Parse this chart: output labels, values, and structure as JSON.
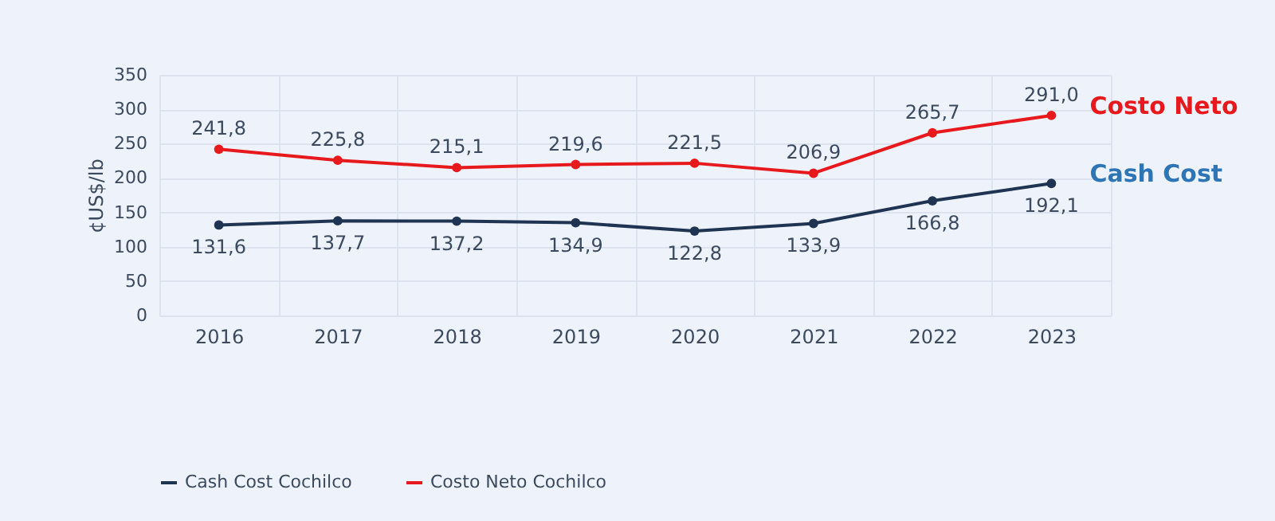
{
  "chart_data": {
    "type": "line",
    "ylabel": "¢US$/lb",
    "categories": [
      "2016",
      "2017",
      "2018",
      "2019",
      "2020",
      "2021",
      "2022",
      "2023"
    ],
    "series": [
      {
        "name": "Cash Cost Cochilco",
        "color": "#1f3352",
        "values": [
          131.6,
          137.7,
          137.2,
          134.9,
          122.8,
          133.9,
          166.8,
          192.1
        ],
        "value_labels": [
          "131,6",
          "137,7",
          "137,2",
          "134,9",
          "122,8",
          "133,9",
          "166,8",
          "192,1"
        ]
      },
      {
        "name": "Costo Neto Cochilco",
        "color": "#e8191c",
        "values": [
          241.8,
          225.8,
          215.1,
          219.6,
          221.5,
          206.9,
          265.7,
          291.0
        ],
        "value_labels": [
          "241,8",
          "225,8",
          "215,1",
          "219,6",
          "221,5",
          "206,9",
          "265,7",
          "291,0"
        ]
      }
    ],
    "annotations": [
      {
        "text": "Costo Neto",
        "x": "2023",
        "y": 291.0
      },
      {
        "text": "Cash Cost",
        "x": "2023",
        "y": 192.1
      }
    ],
    "ylim": [
      0,
      350
    ],
    "yticks": [
      0,
      50,
      100,
      150,
      200,
      250,
      300,
      350
    ],
    "grid": true,
    "legend": "bottom",
    "marker": "circle",
    "line_style": "solid"
  }
}
